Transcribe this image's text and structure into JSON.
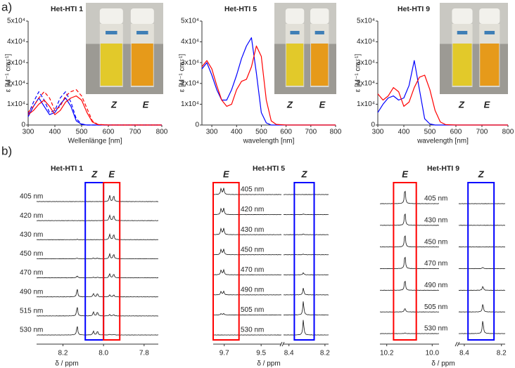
{
  "panel_labels": [
    "a)",
    "b)"
  ],
  "chart_data": [
    {
      "type": "line",
      "title": "Het-HTI 1",
      "xlabel": "Wellenlänge [nm]",
      "ylabel": "ε [M⁻¹ cm⁻¹]",
      "x": [
        300,
        320,
        340,
        360,
        380,
        400,
        420,
        440,
        460,
        480,
        500,
        520,
        540,
        560,
        600,
        800
      ],
      "series": [
        {
          "name": "Z",
          "color": "#0000ff",
          "dash": false,
          "values": [
            4000,
            9000,
            13000,
            9000,
            5000,
            6000,
            10000,
            13000,
            9000,
            2000,
            300,
            0,
            0,
            0,
            0,
            0
          ]
        },
        {
          "name": "Z",
          "color": "#0000ff",
          "dash": true,
          "values": [
            5000,
            11000,
            16000,
            12000,
            6000,
            7000,
            13000,
            16000,
            11000,
            3000,
            500,
            0,
            0,
            0,
            0,
            0
          ]
        },
        {
          "name": "E",
          "color": "#ff0000",
          "dash": false,
          "values": [
            5000,
            7000,
            10000,
            12000,
            9000,
            5000,
            7000,
            11000,
            13000,
            14000,
            12000,
            6000,
            1500,
            200,
            0,
            0
          ]
        },
        {
          "name": "E",
          "color": "#ff0000",
          "dash": true,
          "values": [
            6000,
            9000,
            13000,
            16000,
            13000,
            7000,
            9000,
            14000,
            16000,
            17000,
            14000,
            8000,
            2000,
            300,
            0,
            0
          ]
        }
      ],
      "xlim": [
        300,
        800
      ],
      "xticks": [
        300,
        400,
        500,
        600,
        700,
        800
      ],
      "ylim": [
        0,
        50000
      ],
      "yticks": [
        0,
        {
          "value": 10000,
          "label": "1x10⁴"
        },
        {
          "value": 20000,
          "label": "2x10⁴"
        },
        {
          "value": 30000,
          "label": "3x10⁴"
        },
        {
          "value": 40000,
          "label": "4x10⁴"
        },
        {
          "value": 50000,
          "label": "5x10⁴"
        }
      ],
      "legend_labels": [
        {
          "text": "Z",
          "color": "#0000ff"
        },
        {
          "text": "E",
          "color": "#ff0000"
        }
      ]
    },
    {
      "type": "line",
      "title": "Het-HTI 5",
      "xlabel": "wavelength [nm]",
      "ylabel": "ε [M⁻¹ cm⁻¹]",
      "x": [
        260,
        280,
        300,
        320,
        340,
        360,
        380,
        400,
        420,
        440,
        460,
        480,
        500,
        520,
        540,
        560,
        600,
        800
      ],
      "series": [
        {
          "name": "Z",
          "color": "#0000ff",
          "dash": false,
          "values": [
            27000,
            30000,
            24000,
            17000,
            12000,
            12000,
            17000,
            24000,
            32000,
            38000,
            42000,
            25000,
            6000,
            1000,
            0,
            0,
            0,
            0
          ]
        },
        {
          "name": "E",
          "color": "#ff0000",
          "dash": false,
          "values": [
            28000,
            31000,
            27000,
            19000,
            12000,
            9000,
            10000,
            17000,
            21000,
            22000,
            28000,
            38000,
            33000,
            12000,
            2000,
            300,
            0,
            0
          ]
        }
      ],
      "xlim": [
        260,
        800
      ],
      "xticks": [
        300,
        400,
        500,
        600,
        700,
        800
      ],
      "ylim": [
        0,
        50000
      ],
      "yticks": [
        0,
        {
          "value": 10000,
          "label": "1x10⁴"
        },
        {
          "value": 20000,
          "label": "2x10⁴"
        },
        {
          "value": 30000,
          "label": "3x10⁴"
        },
        {
          "value": 40000,
          "label": "4x10⁴"
        },
        {
          "value": 50000,
          "label": "5x10⁴"
        }
      ],
      "legend_labels": [
        {
          "text": "Z",
          "color": "#0000ff"
        },
        {
          "text": "E",
          "color": "#ff0000"
        }
      ]
    },
    {
      "type": "line",
      "title": "Het-HTI 9",
      "xlabel": "wavelength [nm]",
      "ylabel": "ε [M⁻¹ cm⁻¹]",
      "x": [
        300,
        320,
        340,
        360,
        380,
        400,
        420,
        440,
        460,
        480,
        500,
        520,
        540,
        560,
        600,
        800
      ],
      "series": [
        {
          "name": "Z",
          "color": "#0000ff",
          "dash": false,
          "values": [
            6000,
            10000,
            13000,
            14000,
            12000,
            13000,
            19000,
            31000,
            17000,
            3000,
            500,
            0,
            0,
            0,
            0,
            0
          ]
        },
        {
          "name": "E",
          "color": "#ff0000",
          "dash": false,
          "values": [
            15000,
            12000,
            14000,
            18000,
            16000,
            9000,
            11000,
            18000,
            23000,
            24000,
            17000,
            7000,
            1500,
            200,
            0,
            0
          ]
        }
      ],
      "xlim": [
        300,
        800
      ],
      "xticks": [
        300,
        400,
        500,
        600,
        700,
        800
      ],
      "ylim": [
        0,
        50000
      ],
      "yticks": [
        0,
        {
          "value": 10000,
          "label": "1x10⁴"
        },
        {
          "value": 20000,
          "label": "2x10⁴"
        },
        {
          "value": 30000,
          "label": "3x10⁴"
        },
        {
          "value": 40000,
          "label": "4x10⁴"
        },
        {
          "value": 50000,
          "label": "5x10⁴"
        }
      ],
      "legend_labels": [
        {
          "text": "Z",
          "color": "#0000ff"
        },
        {
          "text": "E",
          "color": "#ff0000"
        }
      ]
    }
  ],
  "nmr_panels": [
    {
      "title": "Het-HTI 1",
      "xlabel": "δ / ppm",
      "traces": [
        "405 nm",
        "420 nm",
        "430 nm",
        "450 nm",
        "470 nm",
        "490 nm",
        "515 nm",
        "530 nm"
      ],
      "segments": [
        {
          "xlim": [
            8.33,
            7.73
          ],
          "xticks": [
            8.2,
            {
              "value": 8,
              "label": "8.0"
            },
            7.8
          ]
        }
      ],
      "peaks": [
        {
          "ppm": 8.13,
          "heights": [
            0,
            0,
            0.5,
            1,
            3,
            12,
            14,
            14
          ]
        },
        {
          "ppm": 8.05,
          "heights": [
            0,
            0,
            0,
            1,
            1,
            5,
            6,
            6
          ]
        },
        {
          "ppm": 8.03,
          "heights": [
            0,
            0,
            0,
            1,
            1,
            5,
            6,
            6
          ]
        },
        {
          "ppm": 7.97,
          "heights": [
            9,
            8,
            8,
            7,
            6,
            3,
            2,
            1
          ]
        },
        {
          "ppm": 7.95,
          "heights": [
            9,
            8,
            8,
            7,
            6,
            3,
            2,
            1
          ]
        }
      ],
      "regions": [
        {
          "label": "Z",
          "color": "#0000ff",
          "from": 8.09,
          "to": 8.0
        },
        {
          "label": "E",
          "color": "#ff0000",
          "from": 8.0,
          "to": 7.92
        }
      ]
    },
    {
      "title": "Het-HTI 5",
      "xlabel": "δ / ppm",
      "traces": [
        "405 nm",
        "420 nm",
        "430 nm",
        "450 nm",
        "470 nm",
        "490 nm",
        "505 nm",
        "530 nm"
      ],
      "segments": [
        {
          "xlim": [
            9.76,
            9.39
          ],
          "xticks": [
            9.7,
            9.5
          ]
        },
        {
          "xlim": [
            8.43,
            8.18
          ],
          "xticks": [
            8.4,
            8.2
          ]
        }
      ],
      "peaks": [
        {
          "ppm": 9.717,
          "heights": [
            9,
            9,
            9,
            8,
            7,
            5,
            2,
            0
          ]
        },
        {
          "ppm": 9.703,
          "heights": [
            9,
            9,
            9,
            8,
            7,
            5,
            2,
            0
          ]
        },
        {
          "ppm": 8.32,
          "heights": [
            0,
            1,
            1,
            1,
            3,
            10,
            20,
            22
          ]
        }
      ],
      "regions": [
        {
          "label": "E",
          "color": "#ff0000",
          "from": 9.76,
          "to": 9.62
        },
        {
          "label": "Z",
          "color": "#0000ff",
          "from": 8.37,
          "to": 8.26
        }
      ]
    },
    {
      "title": "Het-HTI 9",
      "xlabel": "δ / ppm",
      "traces": [
        "405 nm",
        "430 nm",
        "450 nm",
        "470 nm",
        "490 nm",
        "505 nm",
        "530 nm"
      ],
      "segments": [
        {
          "xlim": [
            10.23,
            9.97
          ],
          "xticks": [
            10.2,
            {
              "value": 10,
              "label": "10.0"
            }
          ]
        },
        {
          "xlim": [
            8.43,
            8.18
          ],
          "xticks": [
            8.4,
            8.2
          ]
        }
      ],
      "peaks": [
        {
          "ppm": 10.12,
          "heights": [
            22,
            20,
            20,
            20,
            16,
            6,
            1
          ]
        },
        {
          "ppm": 8.3,
          "heights": [
            0,
            0,
            0,
            2,
            6,
            12,
            20
          ]
        }
      ],
      "regions": [
        {
          "label": "E",
          "color": "#ff0000",
          "from": 10.17,
          "to": 10.07
        },
        {
          "label": "Z",
          "color": "#0000ff",
          "from": 8.38,
          "to": 8.24
        }
      ]
    }
  ]
}
